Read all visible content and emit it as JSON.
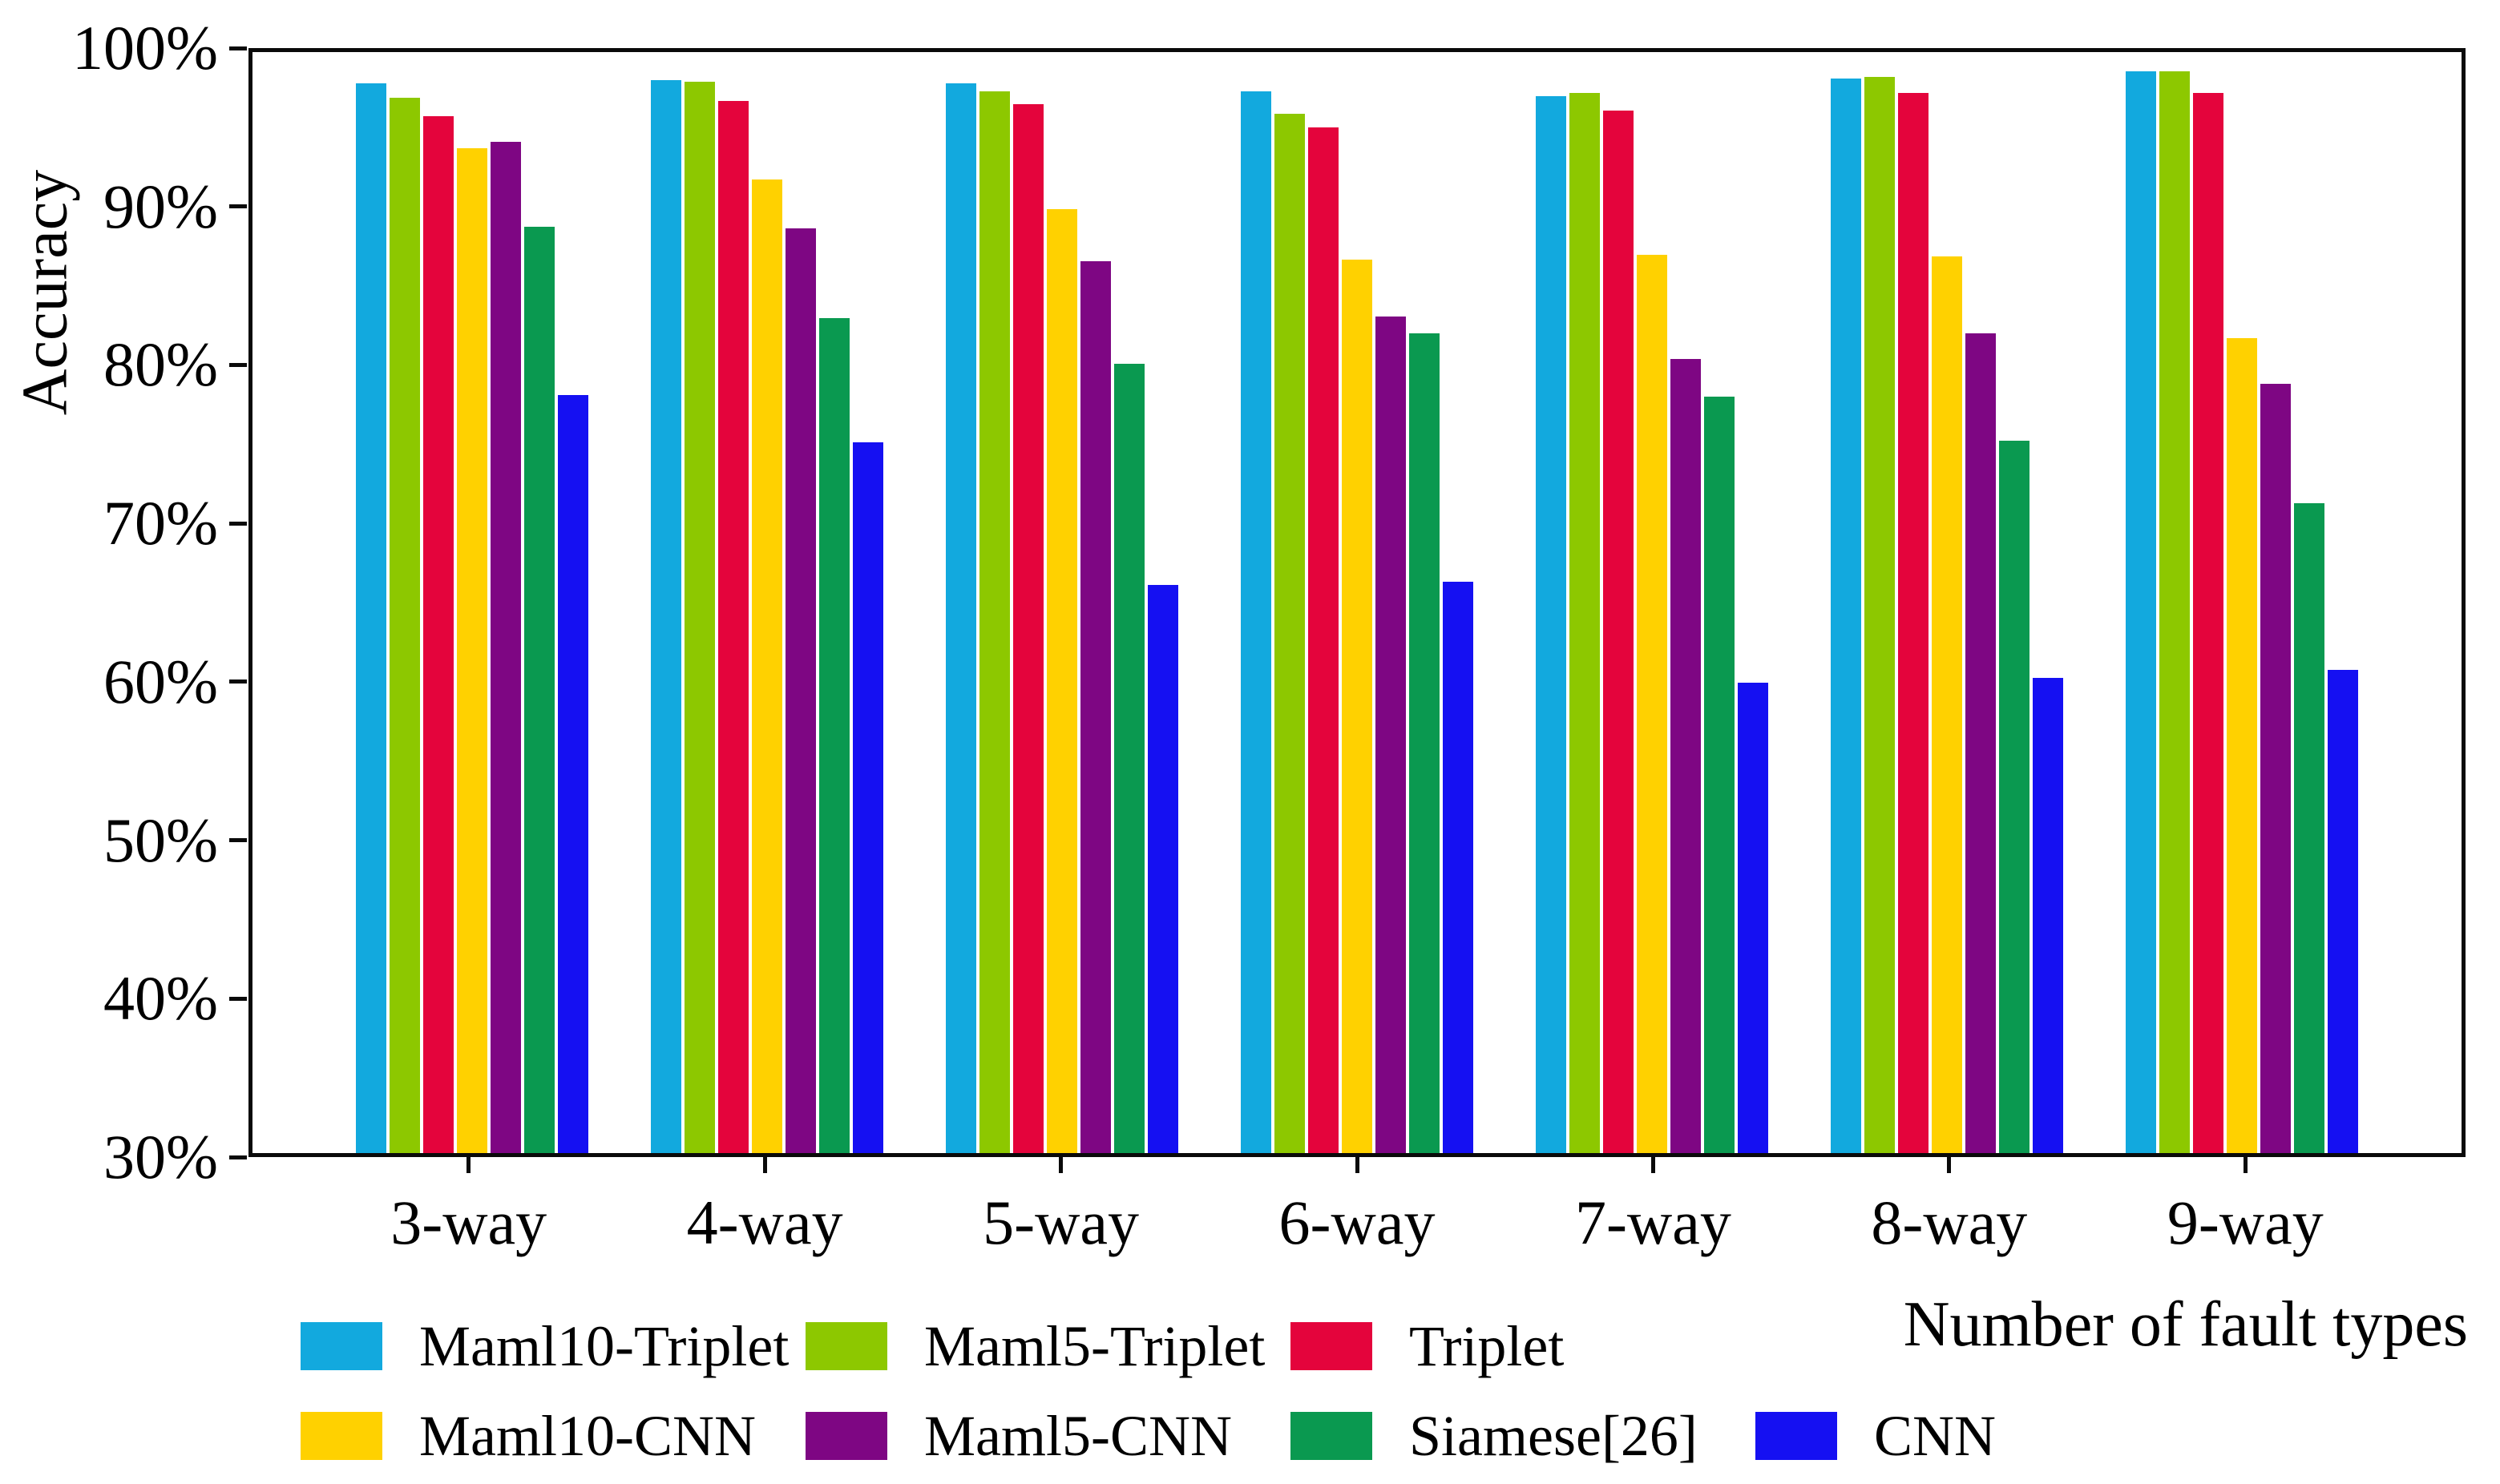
{
  "figure": {
    "ylabel": "Accuracy",
    "xlabel": "Number of fault types"
  },
  "chart_data": {
    "type": "bar",
    "title": "",
    "xlabel": "Number of fault types",
    "ylabel": "Accuracy",
    "ylim": [
      30,
      100
    ],
    "yticks": [
      "100%",
      "90%",
      "80%",
      "70%",
      "60%",
      "50%",
      "40%",
      "30%"
    ],
    "ytick_values": [
      100,
      90,
      80,
      70,
      60,
      50,
      40,
      30
    ],
    "grid": false,
    "legend_position": "bottom",
    "categories": [
      "3-way",
      "4-way",
      "5-way",
      "6-way",
      "7-way",
      "8-way",
      "9-way"
    ],
    "series": [
      {
        "name": "Maml10-Triplet",
        "color": "#12A9DE",
        "values": [
          98.0,
          98.2,
          98.0,
          97.5,
          97.2,
          98.3,
          98.8
        ]
      },
      {
        "name": "Maml5-Triplet",
        "color": "#8DC800",
        "values": [
          97.1,
          98.1,
          97.5,
          96.1,
          97.4,
          98.4,
          98.8
        ]
      },
      {
        "name": "Triplet",
        "color": "#E4043C",
        "values": [
          95.9,
          96.9,
          96.7,
          95.2,
          96.3,
          97.4,
          97.4
        ]
      },
      {
        "name": "Maml10-CNN",
        "color": "#FFD100",
        "values": [
          93.9,
          91.9,
          90.0,
          86.8,
          87.1,
          87.0,
          81.8
        ]
      },
      {
        "name": "Maml5-CNN",
        "color": "#7E0683",
        "values": [
          94.3,
          88.8,
          86.7,
          83.2,
          80.5,
          82.1,
          78.9
        ]
      },
      {
        "name": "Siamese[26]",
        "color": "#0A9950",
        "values": [
          88.9,
          83.1,
          80.2,
          82.1,
          78.1,
          75.3,
          71.3
        ]
      },
      {
        "name": "CNN",
        "color": "#1510F2",
        "values": [
          78.2,
          75.2,
          66.1,
          66.3,
          59.9,
          60.2,
          60.7
        ]
      }
    ],
    "legend_rows": [
      [
        "Maml10-Triplet",
        "Maml5-Triplet",
        "Triplet"
      ],
      [
        "Maml10-CNN",
        "Maml5-CNN",
        "Siamese[26]",
        "CNN"
      ]
    ]
  }
}
